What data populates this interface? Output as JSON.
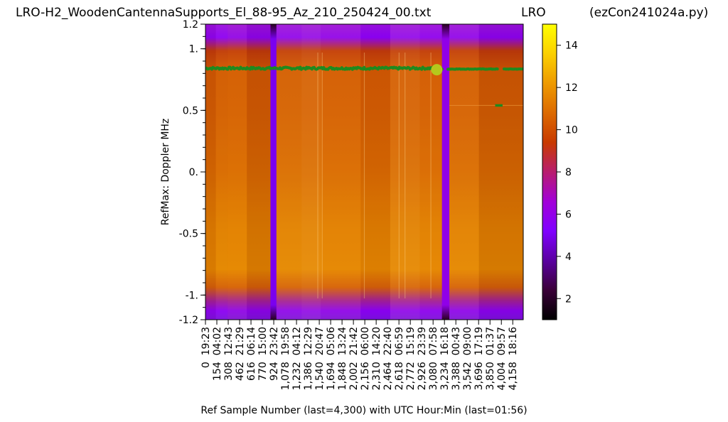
{
  "header": {
    "left_title": "LRO-H2_WoodenCantennaSupports_El_88-95_Az_210_250424_00.txt",
    "center_title": "LRO",
    "right_title": "(ezCon241024a.py)"
  },
  "chart_data": {
    "type": "heatmap",
    "ylabel": "RefMax:  Doppler MHz",
    "xlabel": "Ref Sample Number (last=4,300) with UTC Hour:Min (last=01:56)",
    "x_range": [
      0,
      4300
    ],
    "y_range": [
      -1.2,
      1.2
    ],
    "y_ticks": [
      {
        "value": 1.2,
        "label": "1.2"
      },
      {
        "value": 1.0,
        "label": "1."
      },
      {
        "value": 0.5,
        "label": "0.5"
      },
      {
        "value": 0.0,
        "label": "0."
      },
      {
        "value": -0.5,
        "label": "-0.5"
      },
      {
        "value": -1.0,
        "label": "-1."
      },
      {
        "value": -1.2,
        "label": "-1.2"
      }
    ],
    "y_minor_step": 0.1,
    "x_ticks": [
      {
        "value": 0,
        "label": "0  19:23"
      },
      {
        "value": 154,
        "label": "154  04:02"
      },
      {
        "value": 308,
        "label": "308  12:43"
      },
      {
        "value": 462,
        "label": "462  21:29"
      },
      {
        "value": 616,
        "label": "616  06:14"
      },
      {
        "value": 770,
        "label": "770  15:00"
      },
      {
        "value": 924,
        "label": "924  23:42"
      },
      {
        "value": 1078,
        "label": "1,078  19:58"
      },
      {
        "value": 1232,
        "label": "1,232  04:12"
      },
      {
        "value": 1386,
        "label": "1,386  12:29"
      },
      {
        "value": 1540,
        "label": "1,540  20:47"
      },
      {
        "value": 1694,
        "label": "1,694  05:06"
      },
      {
        "value": 1848,
        "label": "1,848  13:24"
      },
      {
        "value": 2002,
        "label": "2,002  21:42"
      },
      {
        "value": 2156,
        "label": "2,156  06:00"
      },
      {
        "value": 2310,
        "label": "2,310  14:20"
      },
      {
        "value": 2464,
        "label": "2,464  22:40"
      },
      {
        "value": 2618,
        "label": "2,618  06:59"
      },
      {
        "value": 2772,
        "label": "2,772  15:19"
      },
      {
        "value": 2926,
        "label": "2,926  23:39"
      },
      {
        "value": 3080,
        "label": "3,080  07:58"
      },
      {
        "value": 3234,
        "label": "3,234  16:18"
      },
      {
        "value": 3388,
        "label": "3,388  00:43"
      },
      {
        "value": 3542,
        "label": "3,542  09:00"
      },
      {
        "value": 3696,
        "label": "3,696  17:19"
      },
      {
        "value": 3850,
        "label": "3,850  01:37"
      },
      {
        "value": 4004,
        "label": "4,004  09:57"
      },
      {
        "value": 4158,
        "label": "4,158  18:16"
      }
    ],
    "colorbar": {
      "range": [
        1,
        15
      ],
      "ticks": [
        2,
        4,
        6,
        8,
        10,
        12,
        14
      ],
      "colormap": "gnuplot",
      "stops": [
        "#000000",
        "#3a0038",
        "#5a00a0",
        "#8000ff",
        "#a200d8",
        "#b81d6e",
        "#c83a00",
        "#dc6a00",
        "#ee9a00",
        "#fbd000",
        "#ffff00"
      ]
    },
    "dark_columns": [
      {
        "x0": 880,
        "x1": 960,
        "level": 3.5
      },
      {
        "x0": 3200,
        "x1": 3300,
        "level": 5
      }
    ],
    "peak_track": {
      "color": "#1f8a1f",
      "segments": [
        {
          "x0": 0,
          "x1": 3200,
          "y": 0.84,
          "scatter": 0.018
        },
        {
          "x0": 3280,
          "x1": 3950,
          "y": 0.835,
          "scatter": 0.004
        },
        {
          "x0": 4040,
          "x1": 4300,
          "y": 0.835,
          "scatter": 0.003
        }
      ],
      "isolated_segment": {
        "x0": 3920,
        "x1": 4020,
        "y": 0.54
      },
      "marker": {
        "x": 3130,
        "y": 0.83,
        "color": "#b5c81c"
      }
    }
  }
}
